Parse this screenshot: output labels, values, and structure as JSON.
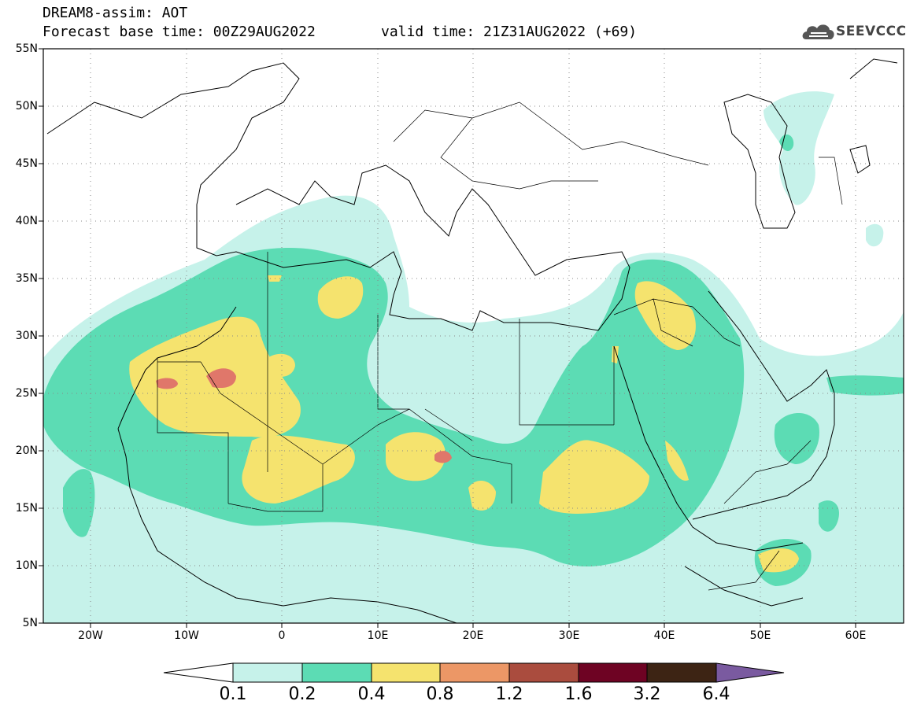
{
  "header": {
    "title_line1": "DREAM8-assim: AOT",
    "title_line2": "Forecast base time: 00Z29AUG2022",
    "valid_time": "valid time: 21Z31AUG2022 (+69)",
    "logo_text": "SEEVCCC"
  },
  "map": {
    "variable": "AOT",
    "lon_range": [
      -25,
      65
    ],
    "lat_range": [
      5,
      55
    ],
    "lat_labels": [
      "55N",
      "50N",
      "45N",
      "40N",
      "35N",
      "30N",
      "25N",
      "20N",
      "15N",
      "10N",
      "5N"
    ],
    "lon_labels": [
      "20W",
      "10W",
      "0",
      "10E",
      "20E",
      "30E",
      "40E",
      "50E",
      "60E"
    ],
    "lat_values": [
      55,
      50,
      45,
      40,
      35,
      30,
      25,
      20,
      15,
      10,
      5
    ],
    "lon_values": [
      -20,
      -10,
      0,
      10,
      20,
      30,
      40,
      50,
      60
    ],
    "grid": "dotted"
  },
  "colorbar": {
    "labels": [
      "0.1",
      "0.2",
      "0.4",
      "0.8",
      "1.2",
      "1.6",
      "3.2",
      "6.4"
    ],
    "colors": [
      "#c6f2ea",
      "#5cdcb4",
      "#f5e36e",
      "#ec9766",
      "#aa4c3e",
      "#6e0323",
      "#3d2414",
      "#7a5aa0"
    ],
    "under_color": "#ffffff"
  },
  "colors": {
    "lvl1": "#c6f2ea",
    "lvl2": "#5cdcb4",
    "lvl3": "#f5e36e",
    "lvl4": "#e8775e"
  }
}
